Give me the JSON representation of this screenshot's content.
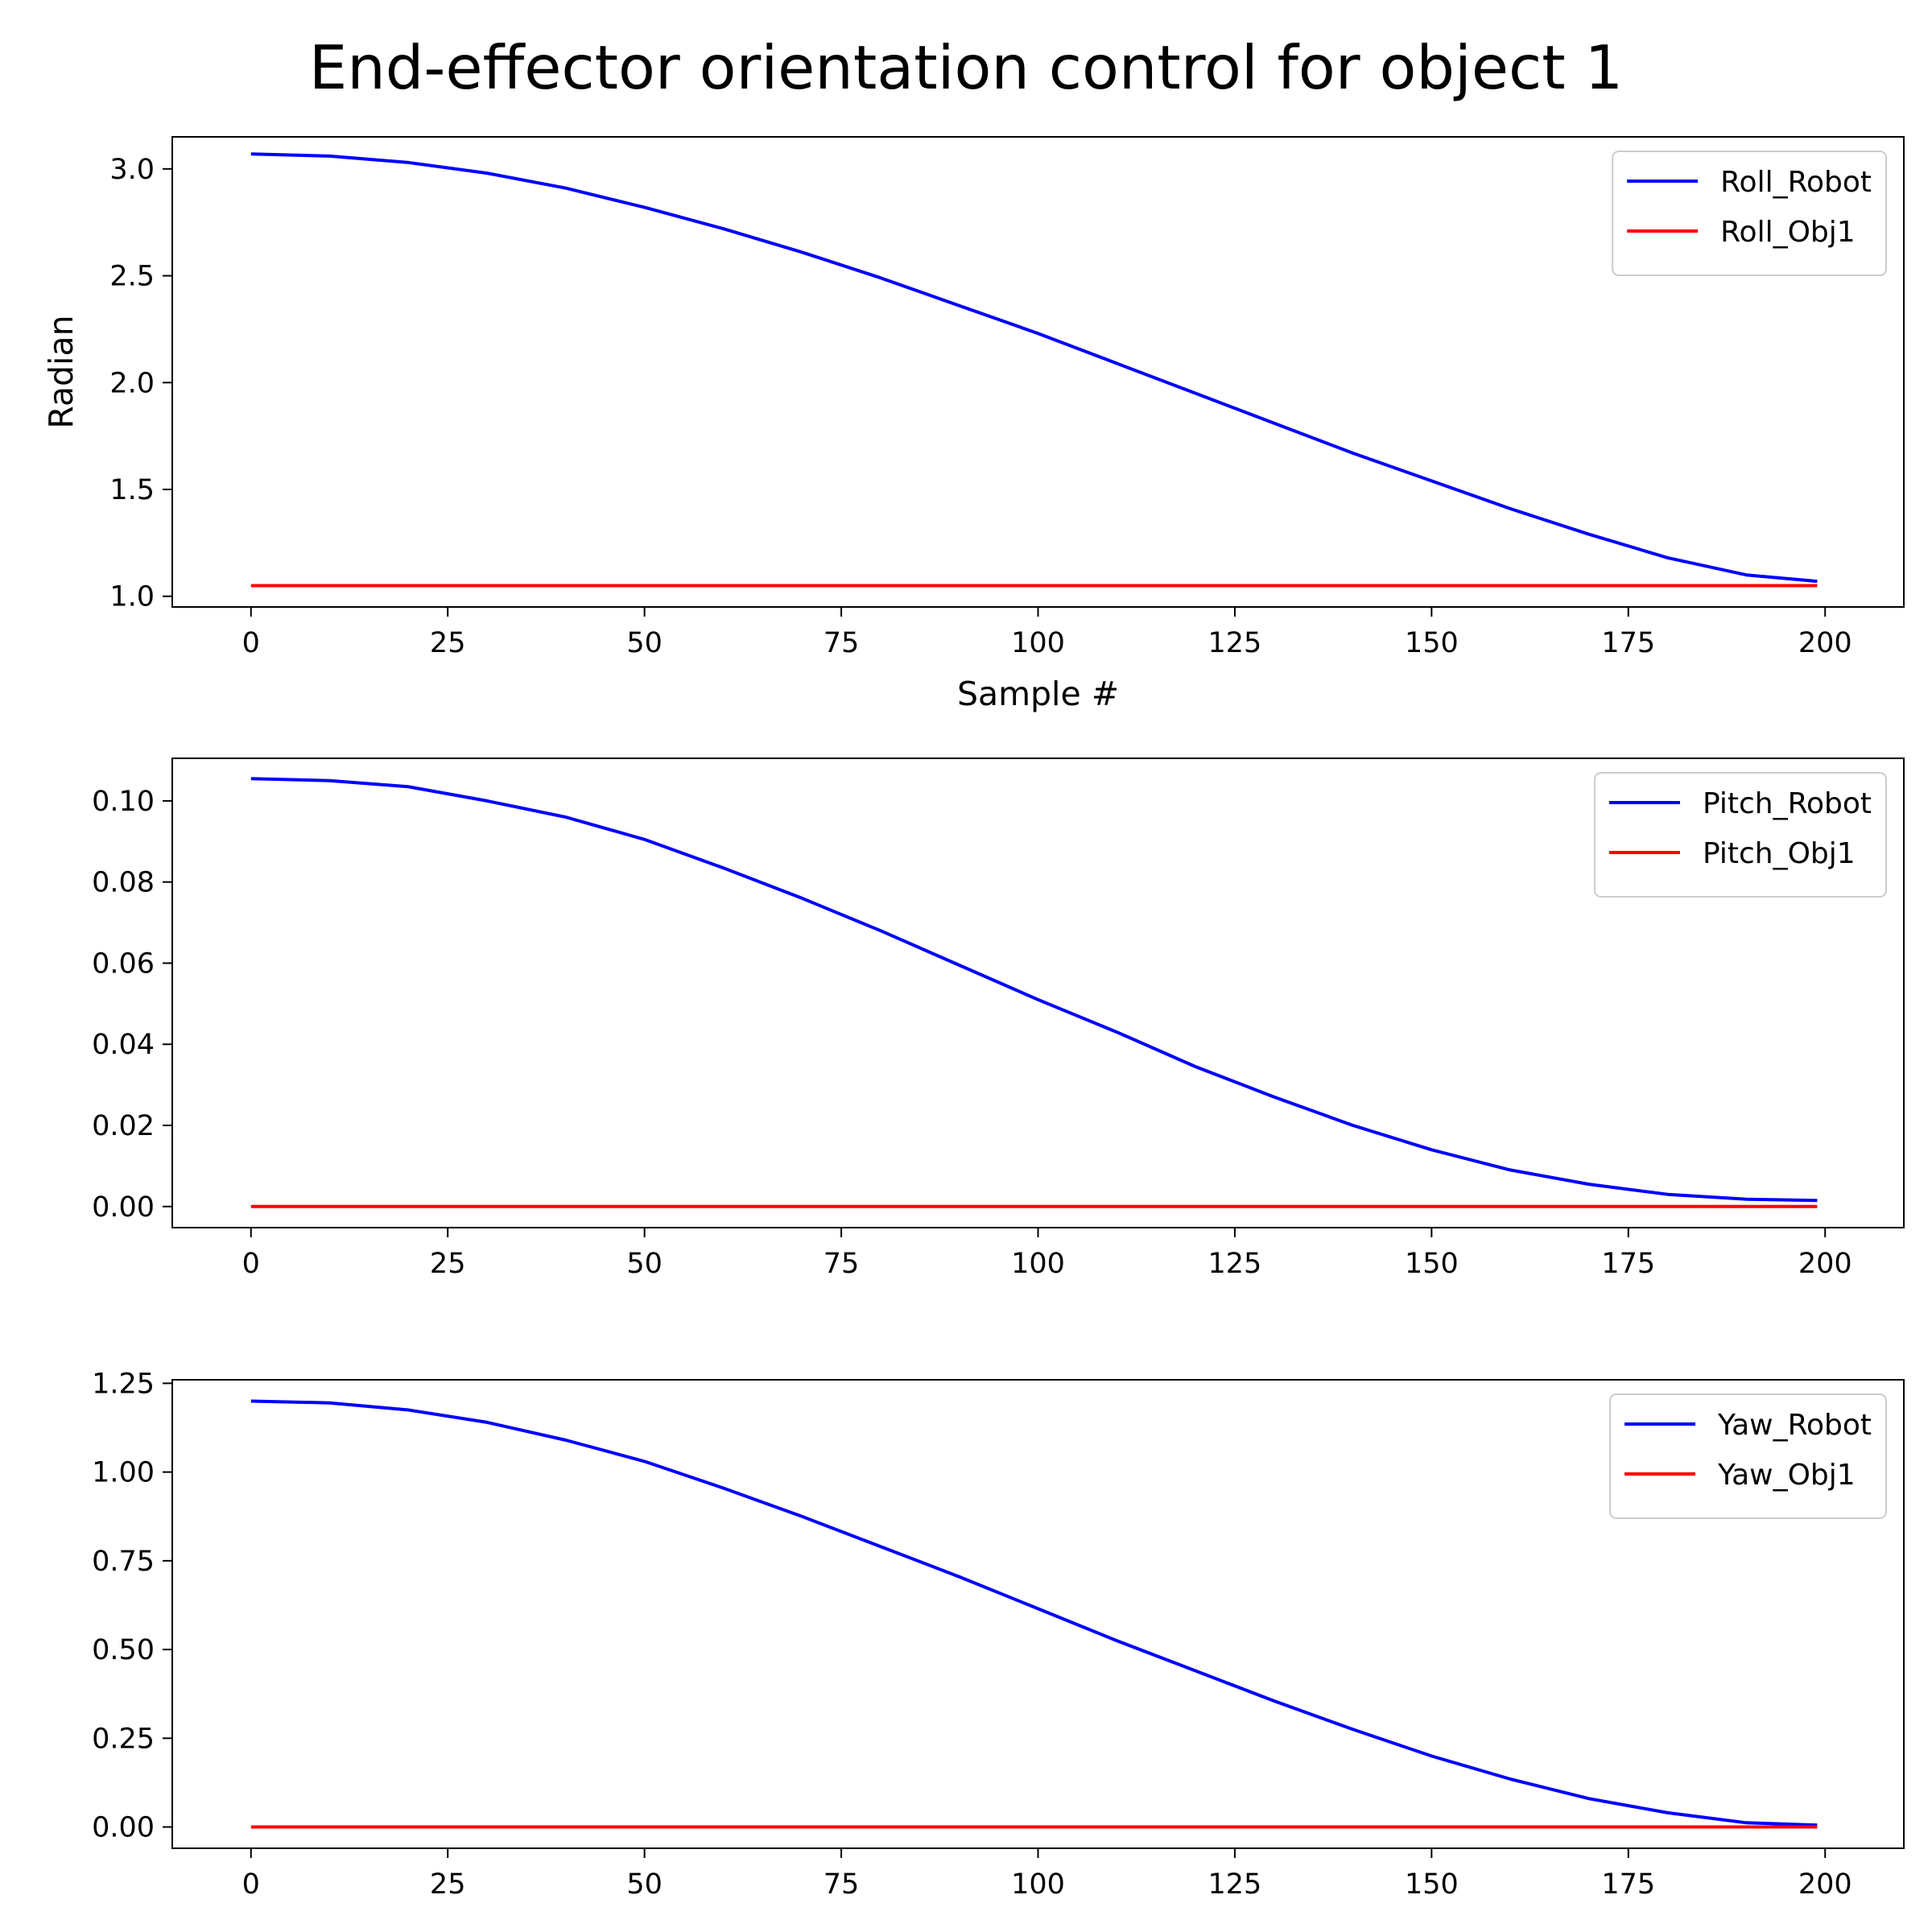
{
  "figure": {
    "title": "End-effector orientation control for object 1"
  },
  "colors": {
    "robot": "#0000ff",
    "object": "#ff0000",
    "axes": "#000000",
    "legend_border": "#cccccc"
  },
  "chart_data": [
    {
      "type": "line",
      "title": "",
      "xlabel": "Sample #",
      "ylabel": "Radian",
      "xlim": [
        -10,
        210
      ],
      "ylim": [
        0.95,
        3.15
      ],
      "x_ticks": [
        0,
        25,
        50,
        75,
        100,
        125,
        150,
        175,
        200
      ],
      "y_ticks": [
        1.0,
        1.5,
        2.0,
        2.5,
        3.0
      ],
      "y_tick_labels": [
        "1.0",
        "1.5",
        "2.0",
        "2.5",
        "3.0"
      ],
      "legend_position": "upper-right",
      "grid": false,
      "series": [
        {
          "name": "Roll_Robot",
          "color": "#0000ff",
          "x": [
            0,
            10,
            20,
            30,
            40,
            50,
            60,
            70,
            80,
            90,
            100,
            110,
            120,
            130,
            140,
            150,
            160,
            170,
            180,
            190,
            199
          ],
          "y": [
            3.07,
            3.06,
            3.03,
            2.98,
            2.91,
            2.82,
            2.72,
            2.61,
            2.49,
            2.36,
            2.23,
            2.09,
            1.95,
            1.81,
            1.67,
            1.54,
            1.41,
            1.29,
            1.18,
            1.1,
            1.07
          ]
        },
        {
          "name": "Roll_Obj1",
          "color": "#ff0000",
          "x": [
            0,
            199
          ],
          "y": [
            1.05,
            1.05
          ]
        }
      ]
    },
    {
      "type": "line",
      "title": "",
      "xlabel": "",
      "ylabel": "",
      "xlim": [
        -10,
        210
      ],
      "ylim": [
        -0.0052,
        0.1105
      ],
      "x_ticks": [
        0,
        25,
        50,
        75,
        100,
        125,
        150,
        175,
        200
      ],
      "y_ticks": [
        0.0,
        0.02,
        0.04,
        0.06,
        0.08,
        0.1
      ],
      "y_tick_labels": [
        "0.00",
        "0.02",
        "0.04",
        "0.06",
        "0.08",
        "0.10"
      ],
      "legend_position": "upper-right",
      "grid": false,
      "series": [
        {
          "name": "Pitch_Robot",
          "color": "#0000ff",
          "x": [
            0,
            10,
            20,
            30,
            40,
            50,
            60,
            70,
            80,
            90,
            100,
            110,
            120,
            130,
            140,
            150,
            160,
            170,
            180,
            190,
            199
          ],
          "y": [
            0.1055,
            0.105,
            0.1035,
            0.1,
            0.096,
            0.0905,
            0.0835,
            0.076,
            0.068,
            0.0595,
            0.051,
            0.043,
            0.0345,
            0.027,
            0.02,
            0.014,
            0.009,
            0.0055,
            0.003,
            0.0018,
            0.0015
          ]
        },
        {
          "name": "Pitch_Obj1",
          "color": "#ff0000",
          "x": [
            0,
            199
          ],
          "y": [
            0.0,
            0.0
          ]
        }
      ]
    },
    {
      "type": "line",
      "title": "",
      "xlabel": "",
      "ylabel": "",
      "xlim": [
        -10,
        210
      ],
      "ylim": [
        -0.06,
        1.26
      ],
      "x_ticks": [
        0,
        25,
        50,
        75,
        100,
        125,
        150,
        175,
        200
      ],
      "y_ticks": [
        0.0,
        0.25,
        0.5,
        0.75,
        1.0,
        1.25
      ],
      "y_tick_labels": [
        "0.00",
        "0.25",
        "0.50",
        "0.75",
        "1.00",
        "1.25"
      ],
      "legend_position": "upper-right",
      "grid": false,
      "series": [
        {
          "name": "Yaw_Robot",
          "color": "#0000ff",
          "x": [
            0,
            10,
            20,
            30,
            40,
            50,
            60,
            70,
            80,
            90,
            100,
            110,
            120,
            130,
            140,
            150,
            160,
            170,
            180,
            190,
            199
          ],
          "y": [
            1.2,
            1.195,
            1.175,
            1.14,
            1.09,
            1.03,
            0.955,
            0.875,
            0.79,
            0.705,
            0.615,
            0.525,
            0.44,
            0.355,
            0.275,
            0.2,
            0.135,
            0.08,
            0.04,
            0.012,
            0.005
          ]
        },
        {
          "name": "Yaw_Obj1",
          "color": "#ff0000",
          "x": [
            0,
            199
          ],
          "y": [
            0.0,
            0.0
          ]
        }
      ]
    }
  ]
}
